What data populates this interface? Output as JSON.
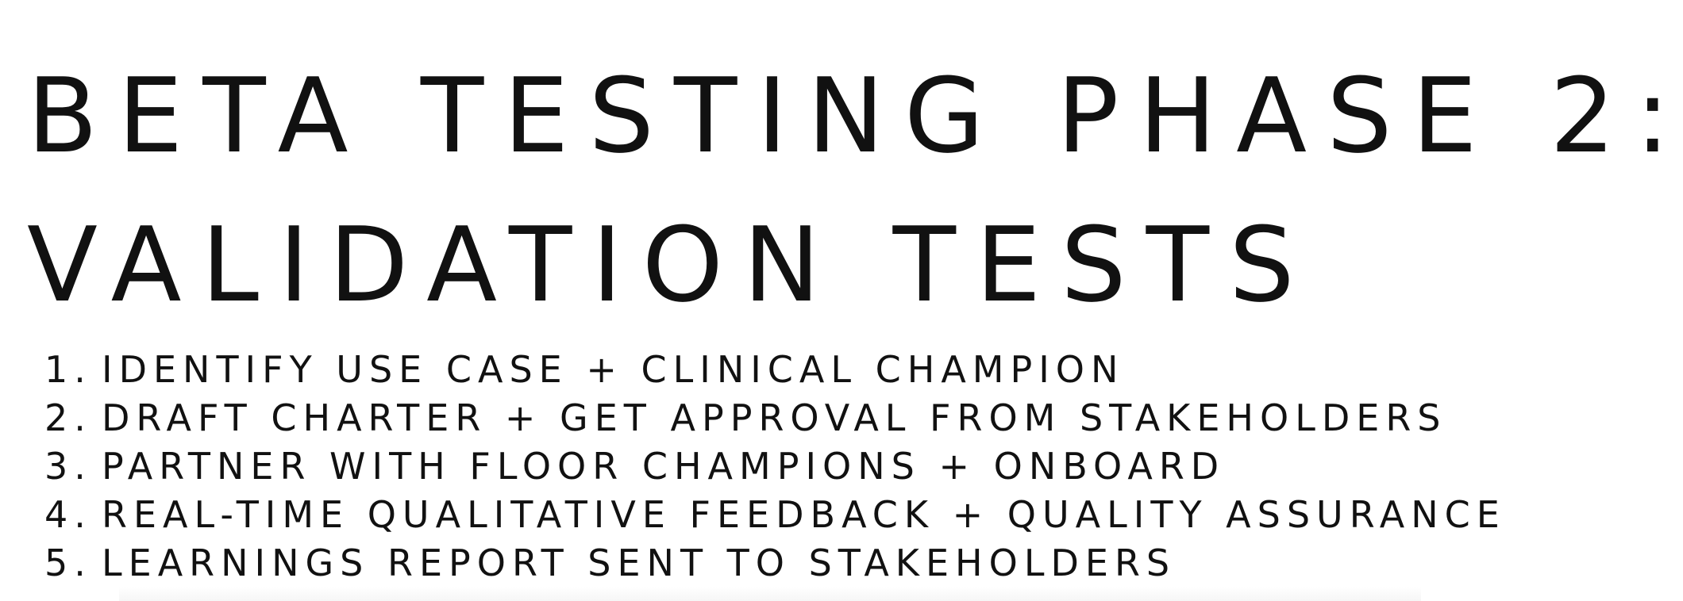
{
  "slide": {
    "title_line1": "BETA TESTING PHASE 2:",
    "title_line2": "VALIDATION TESTS",
    "steps": [
      {
        "num": "1.",
        "text": "IDENTIFY USE CASE + CLINICAL CHAMPION"
      },
      {
        "num": "2.",
        "text": "DRAFT CHARTER + GET APPROVAL FROM STAKEHOLDERS"
      },
      {
        "num": "3.",
        "text": "PARTNER WITH FLOOR CHAMPIONS + ONBOARD"
      },
      {
        "num": "4.",
        "text": "REAL-TIME QUALITATIVE FEEDBACK + QUALITY ASSURANCE"
      },
      {
        "num": "5.",
        "text": "LEARNINGS REPORT SENT TO STAKEHOLDERS"
      }
    ],
    "colors": {
      "background": "#ffffff",
      "text": "#111111"
    }
  }
}
